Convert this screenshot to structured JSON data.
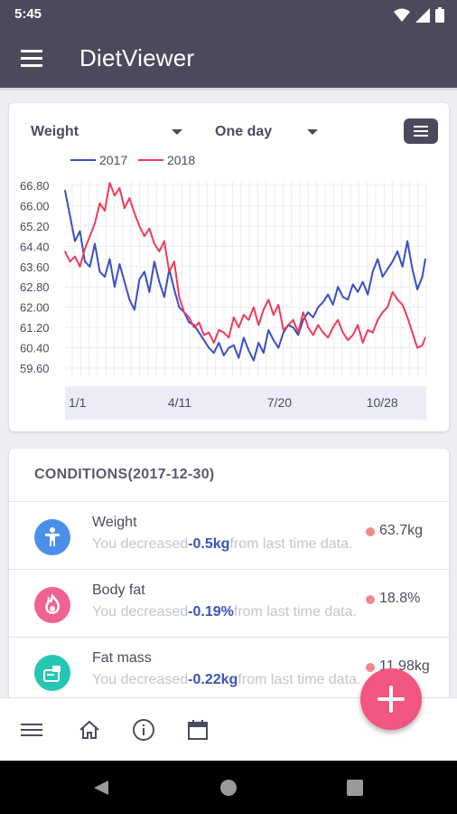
{
  "status": {
    "time": "5:45",
    "icons": [
      "wifi-icon",
      "signal-icon",
      "battery-icon"
    ]
  },
  "appbar": {
    "title": "DietViewer",
    "menu_icon": "hamburger-icon"
  },
  "chart_panel": {
    "metric_select": "Weight",
    "range_select": "One day",
    "menu_icon": "list-icon"
  },
  "chart_data": {
    "type": "line",
    "title": "",
    "xlabel": "",
    "ylabel": "",
    "legend_placement": "top-left",
    "x_ticks": [
      "1/1",
      "4/11",
      "7/20",
      "10/28"
    ],
    "y_ticks": [
      "66.80",
      "66.00",
      "65.20",
      "64.40",
      "63.60",
      "62.80",
      "62.00",
      "61.20",
      "60.40",
      "59.60"
    ],
    "ylim": [
      59.6,
      66.8
    ],
    "grid": true,
    "x_unit": "day of year",
    "series": [
      {
        "name": "2017",
        "color": "#3a4fc4",
        "x": [
          1,
          6,
          11,
          16,
          21,
          26,
          31,
          36,
          41,
          46,
          51,
          56,
          61,
          66,
          71,
          76,
          81,
          86,
          91,
          96,
          101,
          106,
          111,
          116,
          121,
          126,
          131,
          136,
          141,
          146,
          151,
          156,
          161,
          166,
          171,
          176,
          181,
          186,
          191,
          196,
          201,
          206,
          211,
          216,
          221,
          226,
          231,
          236,
          241,
          246,
          251,
          256,
          261,
          266,
          271,
          276,
          281,
          286,
          291,
          296,
          301,
          306,
          311,
          316,
          321,
          326,
          331,
          336,
          341,
          346,
          351,
          356,
          361,
          364
        ],
        "values": [
          66.6,
          65.6,
          64.6,
          65.0,
          63.8,
          63.6,
          64.5,
          63.4,
          63.2,
          63.9,
          62.8,
          63.7,
          63.0,
          62.3,
          61.9,
          63.1,
          63.4,
          62.6,
          63.8,
          63.0,
          62.4,
          63.5,
          62.7,
          62.0,
          61.8,
          61.4,
          61.3,
          61.0,
          60.7,
          60.4,
          60.2,
          60.6,
          60.1,
          60.4,
          60.5,
          60.0,
          60.8,
          60.3,
          59.9,
          60.6,
          60.2,
          61.1,
          60.7,
          60.4,
          61.0,
          61.3,
          61.2,
          60.9,
          61.5,
          61.8,
          61.6,
          62.0,
          62.2,
          62.5,
          62.1,
          62.8,
          62.4,
          62.3,
          62.9,
          62.6,
          63.0,
          62.5,
          63.4,
          63.9,
          63.2,
          63.5,
          63.8,
          64.2,
          63.6,
          64.6,
          63.5,
          62.7,
          63.2,
          63.9
        ]
      },
      {
        "name": "2018",
        "color": "#ee3b5b",
        "x": [
          1,
          6,
          11,
          16,
          21,
          26,
          31,
          36,
          41,
          46,
          51,
          56,
          61,
          66,
          71,
          76,
          81,
          86,
          91,
          96,
          101,
          106,
          111,
          116,
          121,
          126,
          131,
          136,
          141,
          146,
          151,
          156,
          161,
          166,
          171,
          176,
          181,
          186,
          191,
          196,
          201,
          206,
          211,
          216,
          221,
          226,
          231,
          236,
          241,
          246,
          251,
          256,
          261,
          266,
          271,
          276,
          281,
          286,
          291,
          296,
          301,
          306,
          311,
          316,
          321,
          326,
          331,
          336,
          341,
          346,
          351,
          356,
          361,
          364
        ],
        "values": [
          64.2,
          63.8,
          64.0,
          63.6,
          64.3,
          64.8,
          65.3,
          66.1,
          65.8,
          66.9,
          66.4,
          66.7,
          65.9,
          66.3,
          65.7,
          65.2,
          64.8,
          65.1,
          64.5,
          64.2,
          64.6,
          63.4,
          63.8,
          62.4,
          61.8,
          61.6,
          61.2,
          61.4,
          60.9,
          61.0,
          60.6,
          61.1,
          61.0,
          60.8,
          61.6,
          61.2,
          61.7,
          61.5,
          62.0,
          61.3,
          61.9,
          62.3,
          61.7,
          62.1,
          61.1,
          61.3,
          61.5,
          61.0,
          61.8,
          61.2,
          60.9,
          61.3,
          61.0,
          60.8,
          61.2,
          61.5,
          61.0,
          60.7,
          60.9,
          61.3,
          60.6,
          61.1,
          61.0,
          61.5,
          61.8,
          62.0,
          62.6,
          62.3,
          62.1,
          61.6,
          61.0,
          60.4,
          60.5,
          60.8
        ]
      }
    ]
  },
  "conditions": {
    "title": "CONDITIONS(2017-12-30)",
    "rows": [
      {
        "name": "Weight",
        "desc_prefix": "You decreased",
        "delta": "-0.5kg",
        "desc_suffix": "from last time data.",
        "value": "63.7kg",
        "icon": "body-icon",
        "icon_color": "#4a90e8"
      },
      {
        "name": "Body fat",
        "desc_prefix": "You decreased",
        "delta": "-0.19%",
        "desc_suffix": "from last time data.",
        "value": "18.8%",
        "icon": "flame-icon",
        "icon_color": "#f06292"
      },
      {
        "name": "Fat mass",
        "desc_prefix": "You decreased",
        "delta": "-0.22kg",
        "desc_suffix": "from last time data.",
        "value": "11.98kg",
        "icon": "scale-icon",
        "icon_color": "#26c6b3"
      }
    ]
  },
  "bottom_nav": {
    "items": [
      "menu-icon",
      "home-icon",
      "info-icon",
      "calendar-icon"
    ]
  },
  "fab": {
    "icon": "plus-icon",
    "color": "#f2557f"
  },
  "system_nav": {
    "items": [
      "back-icon",
      "home-circle-icon",
      "recents-icon"
    ]
  }
}
